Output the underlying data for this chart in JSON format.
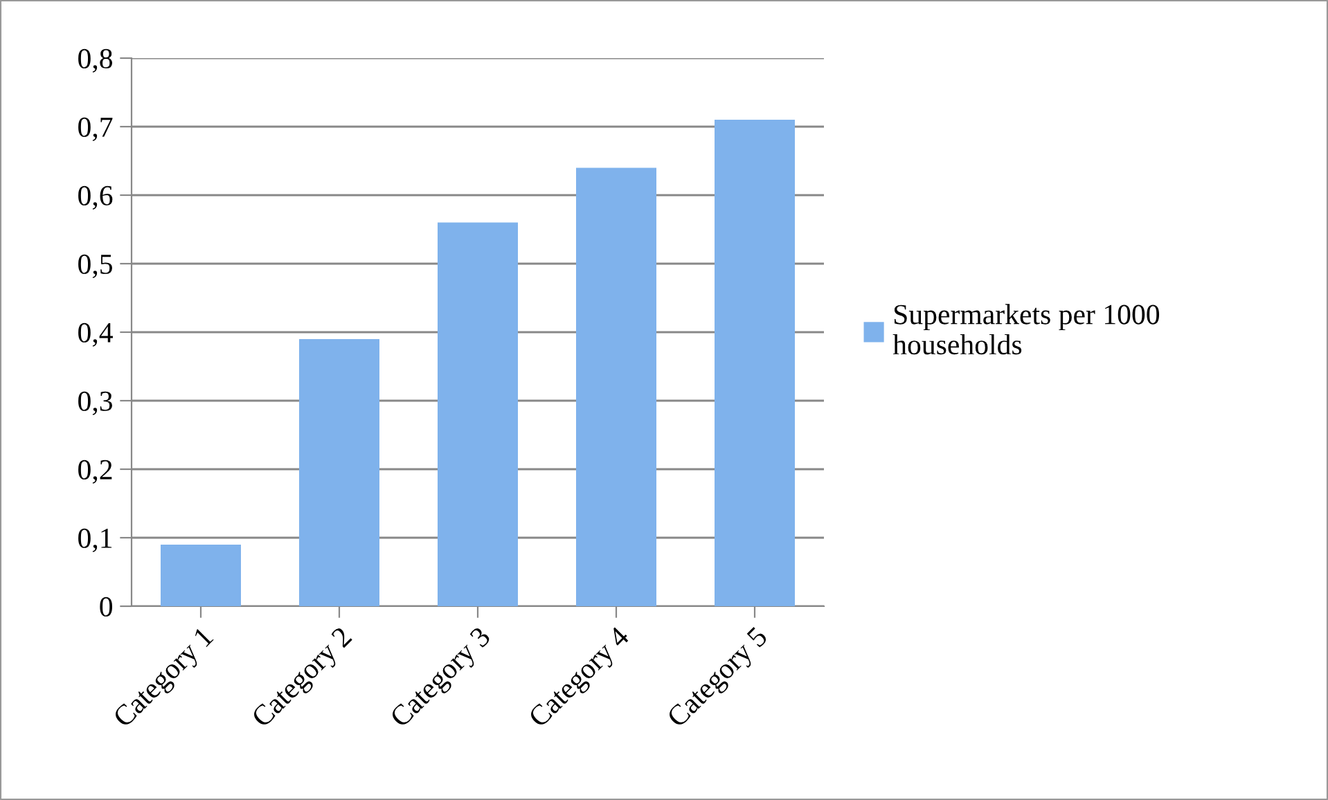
{
  "chart_data": {
    "type": "bar",
    "categories": [
      "Category 1",
      "Category 2",
      "Category 3",
      "Category 4",
      "Category 5"
    ],
    "series": [
      {
        "name": "Supermarkets per 1000 households",
        "color": "#7fb2ec",
        "values": [
          0.09,
          0.39,
          0.56,
          0.64,
          0.71
        ]
      }
    ],
    "ylim": [
      0,
      0.8
    ],
    "yticks": [
      {
        "value": 0,
        "label": "0"
      },
      {
        "value": 0.1,
        "label": "0,1"
      },
      {
        "value": 0.2,
        "label": "0,2"
      },
      {
        "value": 0.3,
        "label": "0,3"
      },
      {
        "value": 0.4,
        "label": "0,4"
      },
      {
        "value": 0.5,
        "label": "0,5"
      },
      {
        "value": 0.6,
        "label": "0,6"
      },
      {
        "value": 0.7,
        "label": "0,7"
      },
      {
        "value": 0.8,
        "label": "0,8"
      }
    ],
    "grid": "y",
    "legend": "right"
  }
}
